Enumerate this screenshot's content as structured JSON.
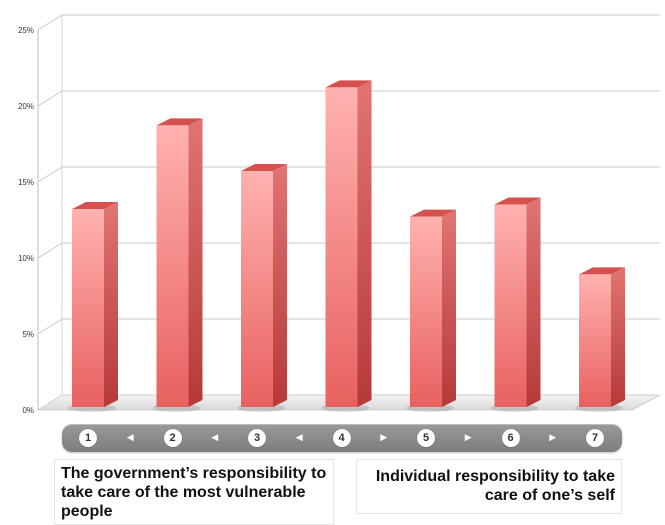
{
  "chart_data": {
    "type": "bar",
    "categories": [
      "1",
      "2",
      "3",
      "4",
      "5",
      "6",
      "7"
    ],
    "values": [
      12.5,
      18,
      15,
      20.5,
      12,
      12.8,
      8.2
    ],
    "y_ticks": [
      "0%",
      "5%",
      "10%",
      "15%",
      "20%",
      "25%"
    ],
    "ylim": [
      0,
      25
    ],
    "y_unit": "%",
    "grid": true,
    "bar_color": "#e8615f",
    "bar_top_color": "#d6504e",
    "bar_side_color": "#b53a38",
    "title": "",
    "xlabel": "",
    "ylabel": ""
  },
  "scale": {
    "arrows": [
      "◀",
      "◀",
      "◀",
      "▶",
      "▶",
      "▶"
    ]
  },
  "labels": {
    "left": "The government’s responsibility to take care of the most vulnerable people",
    "right": "Individual responsibility to take care of one’s self"
  }
}
